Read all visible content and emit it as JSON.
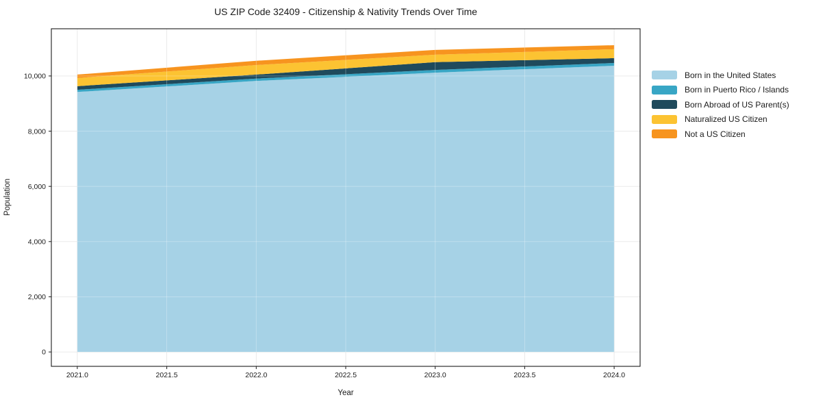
{
  "chart_data": {
    "type": "area",
    "stacked": true,
    "title": "US ZIP Code 32409 - Citizenship & Nativity Trends Over Time",
    "xlabel": "Year",
    "ylabel": "Population",
    "x": [
      2021,
      2022,
      2023,
      2024
    ],
    "series": [
      {
        "name": "Born in the United States",
        "color": "#a6d2e6",
        "values": [
          9420,
          9820,
          10120,
          10370
        ]
      },
      {
        "name": "Born in Puerto Rico / Islands",
        "color": "#38a6c5",
        "values": [
          80,
          85,
          100,
          100
        ]
      },
      {
        "name": "Born Abroad of US Parent(s)",
        "color": "#1f4a5c",
        "values": [
          130,
          145,
          280,
          175
        ]
      },
      {
        "name": "Naturalized US Citizen",
        "color": "#fcc332",
        "values": [
          295,
          345,
          270,
          325
        ]
      },
      {
        "name": "Not a US Citizen",
        "color": "#f7941f",
        "values": [
          125,
          155,
          175,
          145
        ]
      }
    ],
    "stack_totals": [
      10050,
      10550,
      10945,
      11115
    ],
    "xlim": [
      2020.855,
      2024.145
    ],
    "ylim": [
      -520,
      11710
    ],
    "xticks": {
      "values": [
        2021.0,
        2021.5,
        2022.0,
        2022.5,
        2023.0,
        2023.5,
        2024.0
      ],
      "labels": [
        "2021.0",
        "2021.5",
        "2022.0",
        "2022.5",
        "2023.0",
        "2023.5",
        "2024.0"
      ]
    },
    "yticks": {
      "values": [
        0,
        2000,
        4000,
        6000,
        8000,
        10000
      ],
      "labels": [
        "0",
        "2,000",
        "4,000",
        "6,000",
        "8,000",
        "10,000"
      ]
    },
    "grid": true,
    "grid_color": "#e7e7e7",
    "axes_color": "#1a1a1a",
    "legend_position": "right"
  }
}
